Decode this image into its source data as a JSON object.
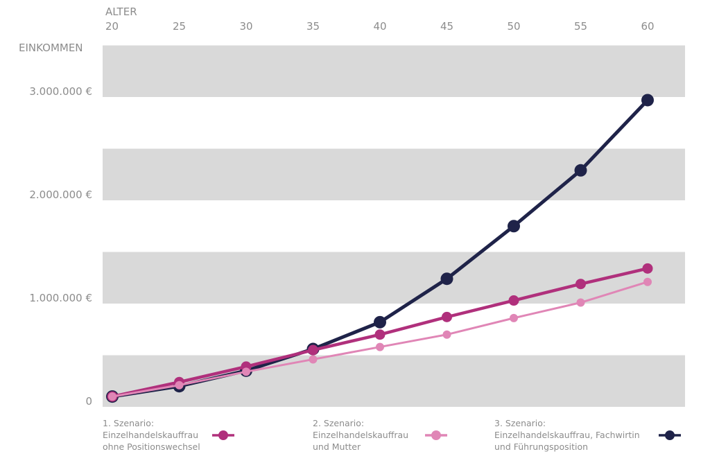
{
  "chart_data": {
    "type": "line",
    "xlabel": "ALTER",
    "ylabel": "EINKOMMEN",
    "x": [
      20,
      25,
      30,
      35,
      40,
      45,
      50,
      55,
      60
    ],
    "xlim": [
      20,
      60
    ],
    "ylim": [
      0,
      3500000
    ],
    "yticks": [
      0,
      1000000,
      2000000,
      3000000
    ],
    "ytick_labels": [
      "0",
      "1.000.000 €",
      "2.000.000 €",
      "3.000.000 €"
    ],
    "grid": "alternating horizontal bands every 500.000 €",
    "legend_position": "bottom",
    "series": [
      {
        "name": "3. Szenario: Einzelhandelskauffrau, Fachwirtin und Führungsposition",
        "legend_lines": [
          "3. Szenario:",
          "Einzelhandelskauffrau, Fachwirtin",
          "und Führungsposition"
        ],
        "color": "#1f2349",
        "values": [
          100000,
          200000,
          350000,
          560000,
          820000,
          1240000,
          1750000,
          2290000,
          2970000
        ]
      },
      {
        "name": "1. Szenario: Einzelhandelskauffrau ohne Positionswechsel",
        "legend_lines": [
          "1. Szenario:",
          "Einzelhandelskauffrau",
          "ohne Positionswechsel"
        ],
        "color": "#b0307c",
        "values": [
          100000,
          240000,
          390000,
          550000,
          700000,
          870000,
          1030000,
          1190000,
          1340000
        ]
      },
      {
        "name": "2. Szenario: Einzelhandelskauffrau und Mutter",
        "legend_lines": [
          "2. Szenario:",
          "Einzelhandelskauffrau",
          "und Mutter"
        ],
        "color": "#e086b6",
        "values": [
          100000,
          210000,
          340000,
          460000,
          580000,
          700000,
          860000,
          1010000,
          1210000
        ]
      }
    ],
    "band_color": "#d9d9d9"
  }
}
